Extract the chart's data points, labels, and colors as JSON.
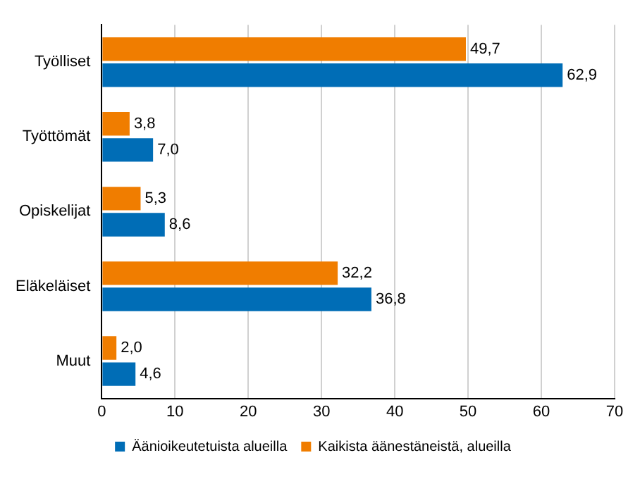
{
  "chart_data": {
    "type": "bar",
    "orientation": "horizontal",
    "categories": [
      "Työlliset",
      "Työttömät",
      "Opiskelijat",
      "Eläkeläiset",
      "Muut"
    ],
    "series": [
      {
        "name": "Kaikista äänestäneistä, alueilla",
        "color": "#f07d00",
        "values": [
          49.7,
          3.8,
          5.3,
          32.2,
          2.0
        ],
        "value_labels": [
          "49,7",
          "3,8",
          "5,3",
          "32,2",
          "2,0"
        ]
      },
      {
        "name": "Äänioikeutetuista alueilla",
        "color": "#006db6",
        "values": [
          62.9,
          7.0,
          8.6,
          36.8,
          4.6
        ],
        "value_labels": [
          "62,9",
          "7,0",
          "8,6",
          "36,8",
          "4,6"
        ]
      }
    ],
    "xlim": [
      0,
      70
    ],
    "xticks": [
      0,
      10,
      20,
      30,
      40,
      50,
      60,
      70
    ],
    "grid": "x",
    "legend": "bottom"
  }
}
